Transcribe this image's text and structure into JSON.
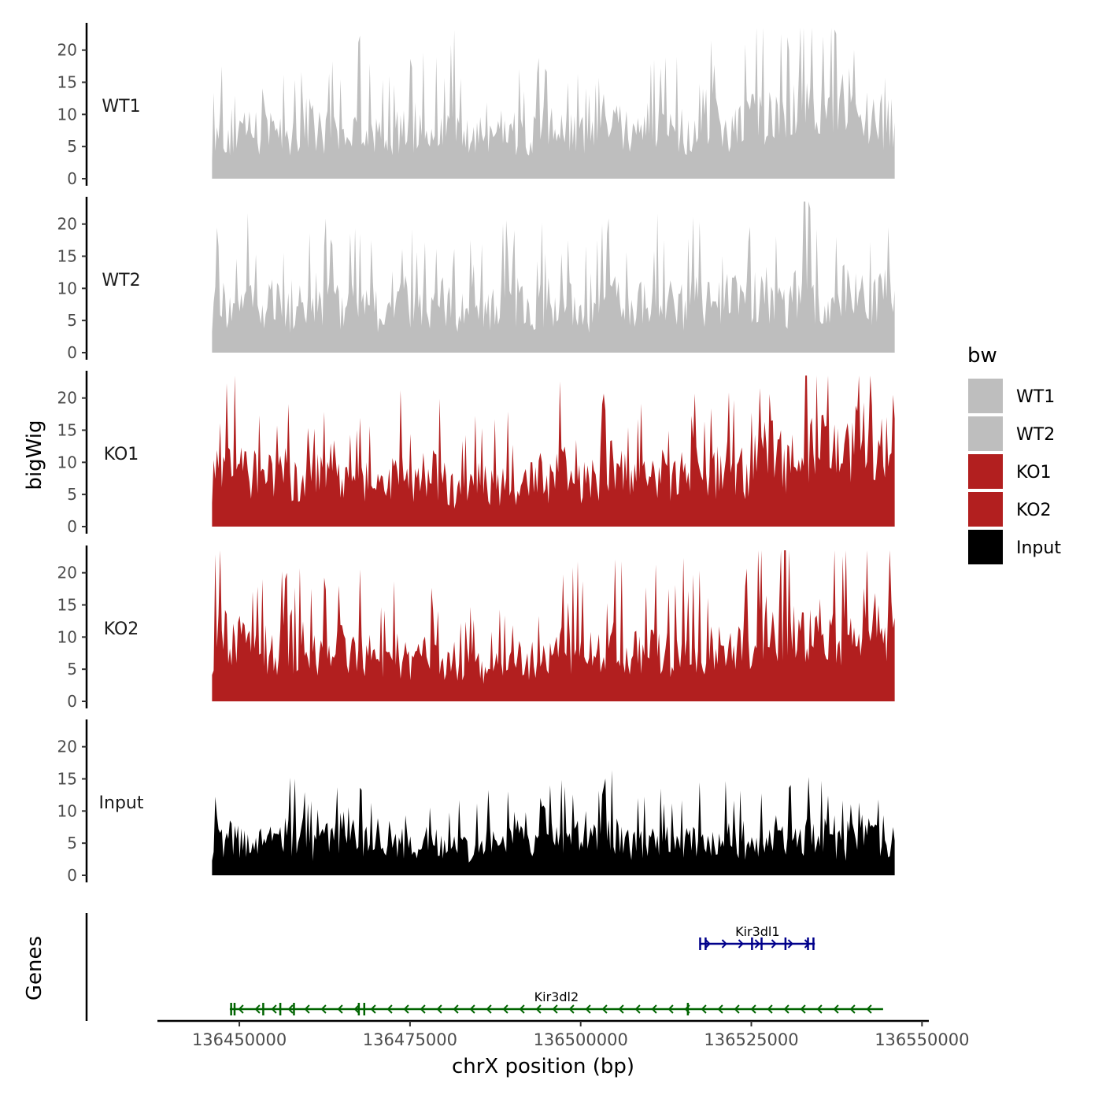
{
  "chart_data": {
    "type": "area",
    "title": "",
    "ylabel": "bigWig",
    "xlabel": "chrX position (bp)",
    "xlim": [
      136438000,
      136551000
    ],
    "data_range": [
      136446000,
      136546000
    ],
    "ylim": [
      0,
      24
    ],
    "y_ticks": [
      0,
      5,
      10,
      15,
      20
    ],
    "x_ticks": [
      136450000,
      136475000,
      136500000,
      136525000,
      136550000
    ],
    "x_tick_labels": [
      "136450000",
      "136475000",
      "136500000",
      "136525000",
      "136550000"
    ],
    "series": [
      {
        "name": "WT1",
        "color": "#bebebe",
        "values": [
          8,
          10,
          7,
          9,
          11,
          8,
          12,
          10,
          9,
          11,
          13,
          9,
          10,
          8,
          11,
          12,
          10,
          9,
          8,
          11,
          10,
          12,
          9,
          11,
          13,
          10,
          8,
          9,
          12,
          10,
          11,
          9,
          8,
          10,
          12,
          11,
          9,
          10,
          8,
          11,
          13,
          12,
          10,
          9,
          11,
          12,
          14,
          11,
          10,
          13,
          15,
          12,
          10,
          11,
          14,
          16,
          13,
          12,
          11,
          15,
          18,
          14,
          12,
          13,
          16,
          20,
          15,
          13,
          12,
          14
        ]
      },
      {
        "name": "WT2",
        "color": "#bebebe",
        "values": [
          9,
          11,
          8,
          10,
          12,
          9,
          11,
          10,
          8,
          12,
          14,
          10,
          11,
          9,
          10,
          12,
          11,
          8,
          9,
          12,
          10,
          11,
          9,
          12,
          10,
          8,
          10,
          11,
          9,
          12,
          10,
          11,
          8,
          10,
          12,
          9,
          11,
          10,
          8,
          10,
          12,
          11,
          9,
          10,
          11,
          12,
          10,
          11,
          9,
          12,
          11,
          10,
          12,
          11,
          10,
          12,
          13,
          11,
          10,
          12,
          14,
          12,
          11,
          10,
          13,
          14,
          12,
          11,
          12,
          13
        ]
      },
      {
        "name": "KO1",
        "color": "#b21f1f",
        "values": [
          10,
          12,
          16,
          14,
          12,
          13,
          11,
          12,
          10,
          11,
          12,
          10,
          9,
          11,
          10,
          12,
          9,
          8,
          10,
          11,
          9,
          10,
          12,
          11,
          8,
          7,
          9,
          10,
          8,
          9,
          10,
          8,
          9,
          11,
          10,
          12,
          11,
          10,
          9,
          11,
          13,
          12,
          10,
          9,
          11,
          12,
          10,
          11,
          12,
          13,
          11,
          12,
          14,
          13,
          12,
          14,
          16,
          15,
          14,
          13,
          17,
          18,
          16,
          15,
          14,
          17,
          19,
          18,
          17,
          20
        ]
      },
      {
        "name": "KO2",
        "color": "#b21f1f",
        "values": [
          11,
          13,
          15,
          12,
          11,
          12,
          10,
          11,
          10,
          12,
          11,
          10,
          9,
          11,
          10,
          12,
          10,
          8,
          9,
          10,
          8,
          9,
          10,
          8,
          7,
          6,
          8,
          7,
          6,
          8,
          7,
          9,
          8,
          10,
          9,
          11,
          10,
          11,
          12,
          10,
          11,
          12,
          10,
          11,
          10,
          12,
          11,
          10,
          12,
          11,
          10,
          12,
          11,
          12,
          13,
          15,
          17,
          16,
          15,
          16,
          17,
          16,
          15,
          14,
          16,
          18,
          17,
          16,
          17,
          18
        ]
      },
      {
        "name": "Input",
        "color": "#000000",
        "values": [
          6,
          7,
          8,
          7,
          6,
          8,
          7,
          9,
          8,
          7,
          6,
          7,
          8,
          9,
          10,
          8,
          7,
          6,
          8,
          7,
          6,
          7,
          8,
          6,
          7,
          6,
          5,
          6,
          7,
          6,
          7,
          8,
          7,
          6,
          7,
          8,
          9,
          8,
          7,
          8,
          9,
          8,
          7,
          6,
          7,
          8,
          7,
          6,
          7,
          8,
          7,
          6,
          8,
          7,
          6,
          7,
          8,
          7,
          8,
          7,
          8,
          9,
          8,
          7,
          6,
          8,
          9,
          8,
          7,
          8
        ]
      }
    ],
    "legend": {
      "title": "bw",
      "placement": "right",
      "entries": [
        {
          "label": "WT1",
          "color": "#bebebe"
        },
        {
          "label": "WT2",
          "color": "#bebebe"
        },
        {
          "label": "KO1",
          "color": "#b21f1f"
        },
        {
          "label": "KO2",
          "color": "#b21f1f"
        },
        {
          "label": "Input",
          "color": "#000000"
        }
      ]
    },
    "genes_track": {
      "label": "Genes",
      "genes": [
        {
          "name": "Kir3dl1",
          "strand": "+",
          "color": "#00008b",
          "start": 136517500,
          "end": 136534300,
          "exons": [
            136517500,
            136518300,
            136525100,
            136526500,
            136530000,
            136533300,
            136534100
          ]
        },
        {
          "name": "Kir3dl2",
          "strand": "-",
          "color": "#006400",
          "start": 136448600,
          "end": 136544300,
          "exons": [
            136448800,
            136449300,
            136453500,
            136456000,
            136458000,
            136467500,
            136468300,
            136515700
          ]
        }
      ]
    }
  }
}
